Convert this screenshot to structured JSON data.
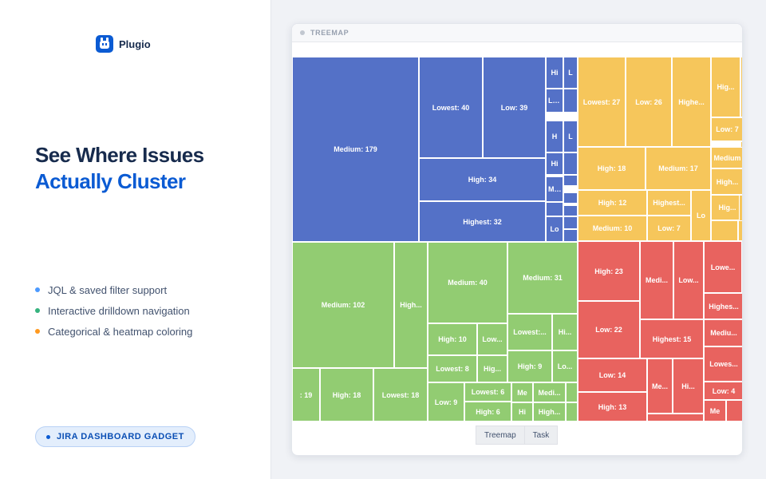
{
  "brand": {
    "name": "Plugio",
    "logo_icon": "robot-logo-icon",
    "color": "#0b5bd3"
  },
  "headline": {
    "line1": "See Where Issues",
    "line2": "Actually Cluster"
  },
  "features": [
    {
      "label": "JQL & saved filter support",
      "color": "#4c9aff"
    },
    {
      "label": "Interactive drilldown navigation",
      "color": "#36b37e"
    },
    {
      "label": "Categorical & heatmap coloring",
      "color": "#ff991f"
    }
  ],
  "badge": {
    "label": "JIRA DASHBOARD GADGET"
  },
  "panel": {
    "title": "TREEMAP"
  },
  "colors": {
    "blue": "#5471c7",
    "yellow": "#f6c65b",
    "green": "#92cc72",
    "red": "#e8635f"
  },
  "treemap": [
    {
      "label": "Medium: 179",
      "color": "blue"
    },
    {
      "label": "Lowest: 40",
      "color": "blue"
    },
    {
      "label": "Low: 39",
      "color": "blue"
    },
    {
      "label": "High: 34",
      "color": "blue"
    },
    {
      "label": "Highest: 32",
      "color": "blue"
    },
    {
      "label": "Hi",
      "color": "blue"
    },
    {
      "label": "L",
      "color": "blue"
    },
    {
      "label": "Lo...",
      "color": "blue"
    },
    {
      "label": "",
      "color": "blue"
    },
    {
      "label": "H",
      "color": "blue"
    },
    {
      "label": "L",
      "color": "blue"
    },
    {
      "label": "Hi",
      "color": "blue"
    },
    {
      "label": "",
      "color": "blue"
    },
    {
      "label": "",
      "color": "blue"
    },
    {
      "label": "Med...",
      "color": "blue"
    },
    {
      "label": "",
      "color": "blue"
    },
    {
      "label": "",
      "color": "blue"
    },
    {
      "label": "",
      "color": "blue"
    },
    {
      "label": "Lo",
      "color": "blue"
    },
    {
      "label": "",
      "color": "blue"
    },
    {
      "label": "",
      "color": "blue"
    },
    {
      "label": "Lowest: 27",
      "color": "yellow"
    },
    {
      "label": "Low: 26",
      "color": "yellow"
    },
    {
      "label": "Highe...",
      "color": "yellow"
    },
    {
      "label": "Hig...",
      "color": "yellow"
    },
    {
      "label": "",
      "color": "yellow"
    },
    {
      "label": "Low: 7",
      "color": "yellow"
    },
    {
      "label": "",
      "color": "yellow"
    },
    {
      "label": "Medium",
      "color": "yellow"
    },
    {
      "label": "High: 18",
      "color": "yellow"
    },
    {
      "label": "Medium: 17",
      "color": "yellow"
    },
    {
      "label": "High...",
      "color": "yellow"
    },
    {
      "label": "Hig...",
      "color": "yellow"
    },
    {
      "label": "High: 12",
      "color": "yellow"
    },
    {
      "label": "Highest...",
      "color": "yellow"
    },
    {
      "label": "Lo",
      "color": "yellow"
    },
    {
      "label": "",
      "color": "yellow"
    },
    {
      "label": "Medium: 10",
      "color": "yellow"
    },
    {
      "label": "Low: 7",
      "color": "yellow"
    },
    {
      "label": "",
      "color": "yellow"
    },
    {
      "label": "",
      "color": "yellow"
    },
    {
      "label": "Medium: 102",
      "color": "green"
    },
    {
      "label": "High...",
      "color": "green"
    },
    {
      "label": "Medium: 40",
      "color": "green"
    },
    {
      "label": "Medium: 31",
      "color": "green"
    },
    {
      "label": "High: 10",
      "color": "green"
    },
    {
      "label": "Low...",
      "color": "green"
    },
    {
      "label": "Lowest:...",
      "color": "green"
    },
    {
      "label": "Hi...",
      "color": "green"
    },
    {
      "label": "Lowest: 8",
      "color": "green"
    },
    {
      "label": "Hig...",
      "color": "green"
    },
    {
      "label": "High: 9",
      "color": "green"
    },
    {
      "label": "Lo...",
      "color": "green"
    },
    {
      "label": ": 19",
      "color": "green"
    },
    {
      "label": "High: 18",
      "color": "green"
    },
    {
      "label": "Lowest: 18",
      "color": "green"
    },
    {
      "label": "Low: 9",
      "color": "green"
    },
    {
      "label": "Lowest: 6",
      "color": "green"
    },
    {
      "label": "Me",
      "color": "green"
    },
    {
      "label": "Medi...",
      "color": "green"
    },
    {
      "label": "",
      "color": "green"
    },
    {
      "label": "High: 6",
      "color": "green"
    },
    {
      "label": "Hi",
      "color": "green"
    },
    {
      "label": "High...",
      "color": "green"
    },
    {
      "label": "",
      "color": "green"
    },
    {
      "label": "High: 23",
      "color": "red"
    },
    {
      "label": "Medi...",
      "color": "red"
    },
    {
      "label": "Low...",
      "color": "red"
    },
    {
      "label": "Lowe...",
      "color": "red"
    },
    {
      "label": "",
      "color": "red"
    },
    {
      "label": "Low: 22",
      "color": "red"
    },
    {
      "label": "Highest: 15",
      "color": "red"
    },
    {
      "label": "Highes...",
      "color": "red"
    },
    {
      "label": "Mediu...",
      "color": "red"
    },
    {
      "label": "Low: 14",
      "color": "red"
    },
    {
      "label": "Me...",
      "color": "red"
    },
    {
      "label": "Hi...",
      "color": "red"
    },
    {
      "label": "Lowes...",
      "color": "red"
    },
    {
      "label": "High: 13",
      "color": "red"
    },
    {
      "label": "Low: 4",
      "color": "red"
    },
    {
      "label": "Me",
      "color": "red"
    },
    {
      "label": "",
      "color": "red"
    },
    {
      "label": "",
      "color": "red"
    },
    {
      "label": "",
      "color": "red"
    }
  ],
  "breadcrumbs": [
    "Treemap",
    "Task"
  ]
}
